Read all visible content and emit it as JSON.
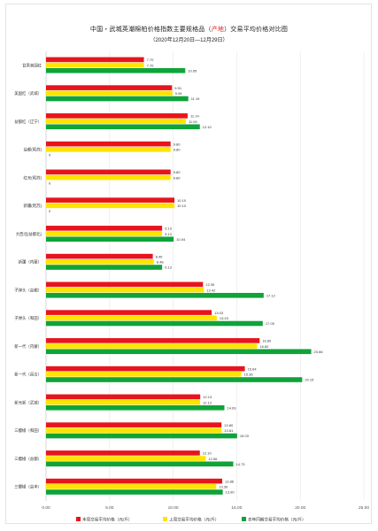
{
  "chart_data": {
    "type": "bar",
    "orientation": "horizontal",
    "title_prefix": "中国・武城英潮棉柏价格指数主要规格品（",
    "title_highlight": "产地",
    "title_suffix": "）交易平均价格对比图",
    "subtitle": "（2020年12月20日—12月29日）",
    "categories": [
      "甘肃美国红",
      "美国红（武城）",
      "益都红（辽宁）",
      "益都(昭苏)",
      "红元(昭苏)",
      "新疆(昭苏)",
      "大西北(益都北)",
      "新疆（内蒙）",
      "子弹头（益都）",
      "子弹头（和田）",
      "新一代（内蒙）",
      "新一代（昌吉）",
      "新元新（武城）",
      "三樱椒（和田）",
      "三樱椒（益都）",
      "三樱椒（益丰）"
    ],
    "series": [
      {
        "name": "本周交易平均价格（元/斤）",
        "color": "#e8141c",
        "values": [
          7.7,
          9.91,
          11.14,
          9.8,
          9.8,
          10.1,
          9.13,
          8.4,
          12.35,
          13.03,
          16.8,
          15.64,
          12.13,
          13.8,
          12.1,
          13.86
        ],
        "labels": [
          "7.70",
          "9.91",
          "11.14",
          "9.80",
          "9.80",
          "10.10",
          "9.13",
          "8.40",
          "12.35",
          "13.03",
          "16.80",
          "15.64",
          "12.13",
          "13.80",
          "12.10",
          "13.86"
        ]
      },
      {
        "name": "上周交易平均价格（元/斤）",
        "color": "#ffe400",
        "values": [
          7.7,
          9.94,
          11.0,
          9.8,
          9.8,
          10.1,
          9.13,
          8.48,
          12.42,
          13.43,
          16.6,
          15.36,
          12.12,
          13.81,
          12.56,
          13.39
        ],
        "labels": [
          "7.70",
          "9.94",
          "11.00",
          "9.80",
          "9.80",
          "10.10",
          "9.13",
          "8.48",
          "12.42",
          "13.43",
          "16.60",
          "15.36",
          "12.12",
          "13.81",
          "12.56",
          "13.39"
        ]
      },
      {
        "name": "去年同期交易平均价格（元/斤）",
        "color": "#0fa33a",
        "values": [
          10.95,
          11.19,
          12.1,
          0,
          0,
          0,
          10.04,
          9.13,
          17.12,
          17.05,
          20.86,
          20.15,
          14.03,
          15.03,
          14.73,
          13.9
        ],
        "labels": [
          "10.95",
          "11.19",
          "12.10",
          "0",
          "0",
          "0",
          "10.04",
          "9.13",
          "17.12",
          "17.05",
          "20.86",
          "20.15",
          "14.03",
          "15.03",
          "14.73",
          "13.90"
        ]
      }
    ],
    "x_ticks": [
      "0.00",
      "5.00",
      "10.00",
      "15.00",
      "20.00",
      "25.00"
    ],
    "xlim": [
      0,
      25
    ],
    "grid": true,
    "legend_position": "bottom"
  }
}
